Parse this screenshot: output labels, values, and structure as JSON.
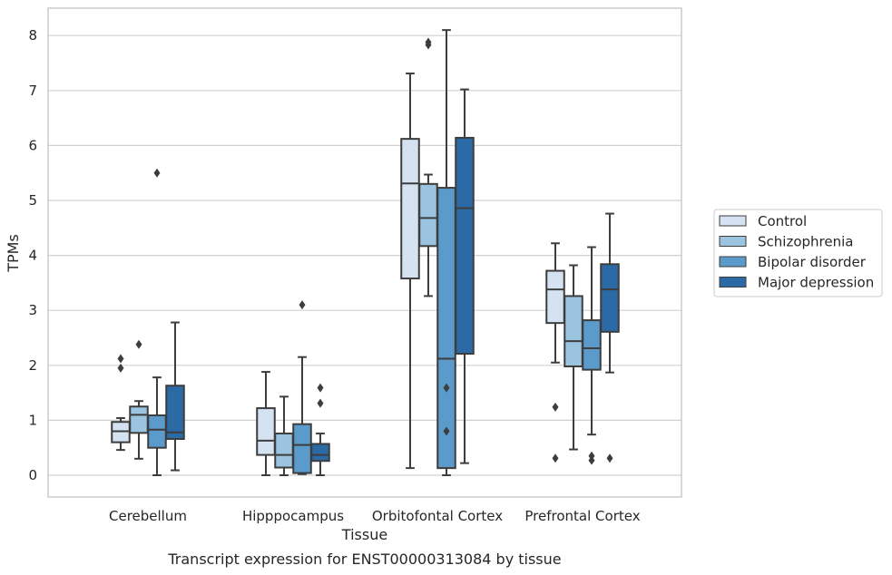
{
  "chart_data": {
    "type": "box",
    "caption": "Transcript expression for ENST00000313084 by tissue",
    "xlabel": "Tissue",
    "ylabel": "TPMs",
    "ylim": [
      -0.4,
      8.5
    ],
    "yticks": [
      0,
      1,
      2,
      3,
      4,
      5,
      6,
      7,
      8
    ],
    "grid": "horizontal",
    "legend_position": "right",
    "categories": [
      "Cerebellum",
      "Hipppocampus",
      "Orbitofontal Cortex",
      "Prefrontal Cortex"
    ],
    "series": [
      {
        "name": "Control",
        "color": "#d4e2f1",
        "boxes": [
          {
            "whisker_low": 0.46,
            "q1": 0.6,
            "median": 0.8,
            "q3": 0.97,
            "whisker_high": 1.04,
            "outliers": [
              1.95,
              2.12
            ]
          },
          {
            "whisker_low": 0.0,
            "q1": 0.37,
            "median": 0.63,
            "q3": 1.22,
            "whisker_high": 1.88,
            "outliers": []
          },
          {
            "whisker_low": 0.13,
            "q1": 3.58,
            "median": 5.31,
            "q3": 6.12,
            "whisker_high": 7.31,
            "outliers": []
          },
          {
            "whisker_low": 2.05,
            "q1": 2.77,
            "median": 3.38,
            "q3": 3.72,
            "whisker_high": 4.22,
            "outliers": [
              0.31,
              1.24
            ]
          }
        ]
      },
      {
        "name": "Schizophrenia",
        "color": "#9ac4e0",
        "boxes": [
          {
            "whisker_low": 0.3,
            "q1": 0.77,
            "median": 1.1,
            "q3": 1.25,
            "whisker_high": 1.35,
            "outliers": [
              2.38
            ]
          },
          {
            "whisker_low": 0.0,
            "q1": 0.14,
            "median": 0.37,
            "q3": 0.76,
            "whisker_high": 1.43,
            "outliers": []
          },
          {
            "whisker_low": 3.26,
            "q1": 4.17,
            "median": 4.68,
            "q3": 5.3,
            "whisker_high": 5.47,
            "outliers": [
              7.83,
              7.88
            ]
          },
          {
            "whisker_low": 0.47,
            "q1": 1.98,
            "median": 2.44,
            "q3": 3.26,
            "whisker_high": 3.82,
            "outliers": []
          }
        ]
      },
      {
        "name": "Bipolar disorder",
        "color": "#5a9bcb",
        "boxes": [
          {
            "whisker_low": 0.0,
            "q1": 0.5,
            "median": 0.83,
            "q3": 1.09,
            "whisker_high": 1.78,
            "outliers": [
              5.5
            ]
          },
          {
            "whisker_low": 0.02,
            "q1": 0.04,
            "median": 0.55,
            "q3": 0.93,
            "whisker_high": 2.15,
            "outliers": [
              3.1
            ]
          },
          {
            "whisker_low": 0.0,
            "q1": 0.13,
            "median": 2.12,
            "q3": 5.23,
            "whisker_high": 8.1,
            "outliers": [
              0.8,
              1.59
            ]
          },
          {
            "whisker_low": 0.74,
            "q1": 1.92,
            "median": 2.31,
            "q3": 2.82,
            "whisker_high": 4.15,
            "outliers": [
              0.27,
              0.35
            ]
          }
        ]
      },
      {
        "name": "Major depression",
        "color": "#2c6aa5",
        "boxes": [
          {
            "whisker_low": 0.09,
            "q1": 0.66,
            "median": 0.78,
            "q3": 1.63,
            "whisker_high": 2.78,
            "outliers": []
          },
          {
            "whisker_low": 0.0,
            "q1": 0.26,
            "median": 0.37,
            "q3": 0.57,
            "whisker_high": 0.76,
            "outliers": [
              1.31,
              1.59
            ]
          },
          {
            "whisker_low": 0.22,
            "q1": 2.21,
            "median": 4.86,
            "q3": 6.14,
            "whisker_high": 7.02,
            "outliers": []
          },
          {
            "whisker_low": 1.87,
            "q1": 2.61,
            "median": 3.38,
            "q3": 3.84,
            "whisker_high": 4.76,
            "outliers": [
              0.31
            ]
          }
        ]
      }
    ]
  }
}
